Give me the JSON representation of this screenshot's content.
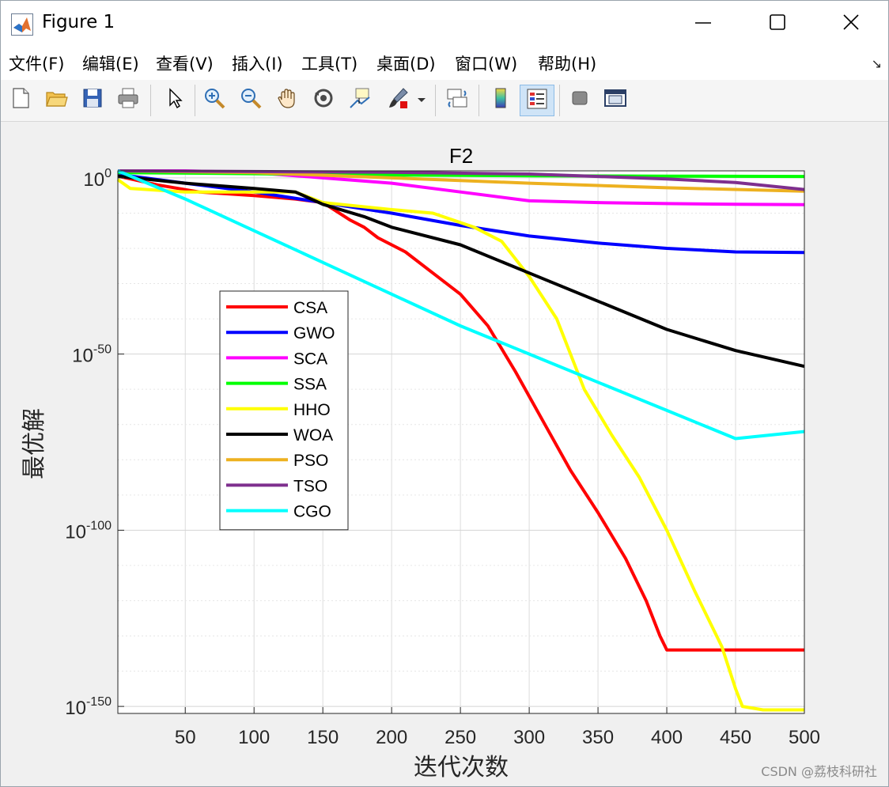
{
  "window": {
    "title": "Figure 1",
    "watermark": "CSDN @荔枝科研社"
  },
  "menu": {
    "items": [
      "文件(F)",
      "编辑(E)",
      "查看(V)",
      "插入(I)",
      "工具(T)",
      "桌面(D)",
      "窗口(W)",
      "帮助(H)"
    ]
  },
  "toolbar": {
    "icons": [
      "new-figure-icon",
      "open-folder-icon",
      "save-icon",
      "print-icon",
      "pointer-icon",
      "zoom-in-icon",
      "zoom-out-icon",
      "pan-hand-icon",
      "rotate-3d-icon",
      "data-cursor-icon",
      "brush-icon",
      "brush-dropdown-icon",
      "link-plot-icon",
      "colorbar-icon",
      "legend-icon",
      "hide-tools-icon",
      "dock-icon"
    ],
    "active": "legend-icon"
  },
  "chart_data": {
    "type": "line",
    "title": "F2",
    "xlabel": "迭代次数",
    "ylabel": "最优解",
    "yscale": "log",
    "xlim": [
      1,
      500
    ],
    "ylim_log10": [
      -152,
      2
    ],
    "xticks": [
      50,
      100,
      150,
      200,
      250,
      300,
      350,
      400,
      450,
      500
    ],
    "yticks_log10": [
      0,
      -50,
      -100,
      -150
    ],
    "ytick_labels": [
      {
        "base": "10",
        "exp": "0"
      },
      {
        "base": "10",
        "exp": "-50"
      },
      {
        "base": "10",
        "exp": "-100"
      },
      {
        "base": "10",
        "exp": "-150"
      }
    ],
    "grid": true,
    "legend_position": "left",
    "series": [
      {
        "name": "CSA",
        "color": "#ff0000",
        "x": [
          1,
          30,
          60,
          100,
          130,
          150,
          170,
          180,
          190,
          210,
          230,
          250,
          270,
          290,
          310,
          330,
          350,
          370,
          385,
          395,
          400,
          410,
          450,
          500
        ],
        "log10y": [
          0.5,
          -2,
          -4,
          -5,
          -6,
          -7,
          -12,
          -14,
          -17,
          -21,
          -27,
          -33,
          -42,
          -55,
          -69,
          -83,
          -95,
          -108,
          -120,
          -130,
          -134,
          -134,
          -134,
          -134
        ]
      },
      {
        "name": "GWO",
        "color": "#0000ff",
        "x": [
          1,
          50,
          100,
          150,
          200,
          250,
          300,
          350,
          400,
          450,
          500
        ],
        "log10y": [
          1,
          -1.5,
          -4,
          -7,
          -10,
          -13.5,
          -16.5,
          -18.5,
          -20,
          -21,
          -21.2
        ]
      },
      {
        "name": "SCA",
        "color": "#ff00ff",
        "x": [
          1,
          50,
          100,
          150,
          200,
          250,
          300,
          350,
          400,
          450,
          500
        ],
        "log10y": [
          2,
          2,
          1.5,
          0,
          -1.5,
          -4,
          -6.5,
          -7,
          -7.3,
          -7.5,
          -7.6
        ]
      },
      {
        "name": "SSA",
        "color": "#00ff00",
        "x": [
          1,
          100,
          200,
          300,
          400,
          500
        ],
        "log10y": [
          1.5,
          1.2,
          0.8,
          0.6,
          0.5,
          0.4
        ]
      },
      {
        "name": "HHO",
        "color": "#ffff00",
        "x": [
          1,
          10,
          50,
          100,
          130,
          150,
          200,
          230,
          260,
          280,
          300,
          320,
          340,
          360,
          380,
          400,
          420,
          440,
          450,
          455,
          470,
          500
        ],
        "log10y": [
          -0.5,
          -3,
          -4,
          -4,
          -4,
          -7,
          -9,
          -10,
          -14,
          -18,
          -28,
          -40,
          -60,
          -73,
          -85,
          -100,
          -117,
          -133,
          -145,
          -150,
          -151,
          -151
        ]
      },
      {
        "name": "WOA",
        "color": "#000000",
        "x": [
          1,
          50,
          100,
          130,
          150,
          180,
          200,
          250,
          300,
          350,
          400,
          450,
          500
        ],
        "log10y": [
          0.5,
          -1.5,
          -3,
          -4,
          -7.5,
          -11,
          -14,
          -19,
          -27,
          -35,
          -43,
          -49,
          -53.5
        ]
      },
      {
        "name": "PSO",
        "color": "#edb120",
        "x": [
          1,
          100,
          200,
          300,
          400,
          500
        ],
        "log10y": [
          2,
          1.5,
          0,
          -1.5,
          -2.8,
          -3.8
        ]
      },
      {
        "name": "TSO",
        "color": "#7e2f8e",
        "x": [
          1,
          100,
          200,
          300,
          400,
          450,
          500
        ],
        "log10y": [
          2,
          1.8,
          1.6,
          1.1,
          -0.3,
          -1.3,
          -3.3
        ]
      },
      {
        "name": "CGO",
        "color": "#00ffff",
        "x": [
          1,
          50,
          100,
          150,
          200,
          250,
          300,
          350,
          400,
          450,
          500
        ],
        "log10y": [
          2,
          -6,
          -15,
          -24,
          -33,
          -42,
          -50,
          -58,
          -66,
          -74,
          -72
        ]
      }
    ]
  }
}
